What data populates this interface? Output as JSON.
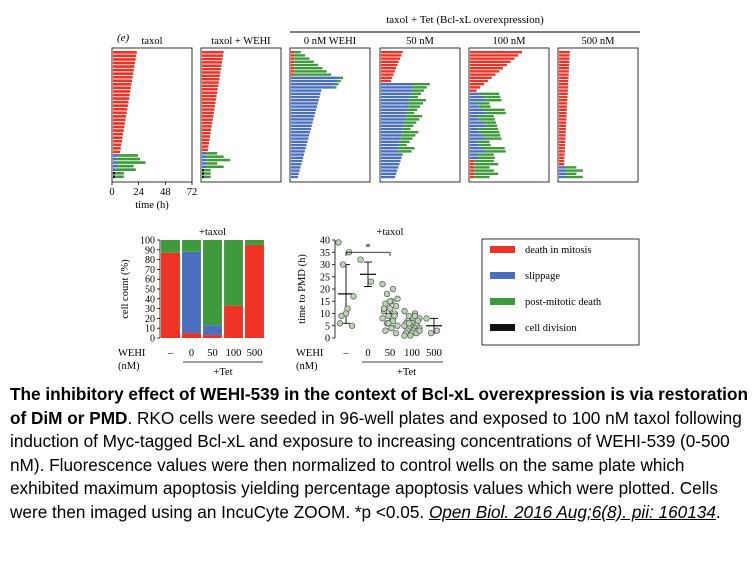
{
  "figure": {
    "panel_label": "(e)",
    "group_label": "taxol + Tet (Bcl-xL overexpression)",
    "tet_label": "+Tet",
    "colors": {
      "death_in_mitosis": "#ee3224",
      "slippage": "#4a6fbf",
      "post_mitotic_death": "#3e9a3a",
      "cell_division": "#111111",
      "dot_fill": "#b9d4b5",
      "dot_stroke": "#555555"
    }
  },
  "fate_charts": {
    "x_ticks": [
      "0",
      "24",
      "48",
      "72"
    ],
    "x_label": "time (h)",
    "panels": [
      {
        "title": "taxol"
      },
      {
        "title": "taxol + WEHI"
      },
      {
        "title": "0 nM WEHI"
      },
      {
        "title": "50 nM"
      },
      {
        "title": "100 nM"
      },
      {
        "title": "500 nM"
      }
    ]
  },
  "chart_data": [
    {
      "type": "bar",
      "title": "+taxol",
      "ylabel": "cell count (%)",
      "ylim": [
        0,
        100
      ],
      "y_ticks": [
        "0",
        "10",
        "20",
        "30",
        "40",
        "50",
        "60",
        "70",
        "80",
        "90",
        "100"
      ],
      "row_label": "WEHI\n(nM)",
      "categories": [
        "–",
        "0",
        "50",
        "100",
        "500"
      ],
      "tet_label": "+Tet",
      "series": [
        {
          "name": "death in mitosis",
          "values": [
            87,
            5,
            3,
            33,
            95
          ]
        },
        {
          "name": "slippage",
          "values": [
            0,
            83,
            10,
            0,
            0
          ]
        },
        {
          "name": "post-mitotic death",
          "values": [
            13,
            12,
            87,
            67,
            5
          ]
        },
        {
          "name": "cell division",
          "values": [
            0,
            0,
            0,
            0,
            0
          ]
        }
      ]
    },
    {
      "type": "scatter",
      "title": "+taxol",
      "ylabel": "time to PMD (h)",
      "ylim": [
        0,
        40
      ],
      "y_ticks": [
        "0",
        "5",
        "10",
        "15",
        "20",
        "25",
        "30",
        "35",
        "40"
      ],
      "row_label": "WEHI\n(nM)",
      "categories": [
        "–",
        "0",
        "50",
        "100",
        "500"
      ],
      "tet_label": "+Tet",
      "annotation": "*",
      "groups": [
        {
          "category": "–",
          "mean": 18,
          "sd": 12,
          "points": [
            39,
            35,
            30,
            17,
            12,
            9,
            5,
            10,
            6
          ]
        },
        {
          "category": "0",
          "mean": 26,
          "sd": 5,
          "points": [
            32,
            23
          ]
        },
        {
          "category": "50",
          "mean": 10,
          "sd": 5,
          "points": [
            22,
            20,
            18,
            16,
            15,
            14,
            13,
            12,
            11,
            10,
            9,
            8,
            7,
            6,
            5,
            4,
            3,
            2,
            15,
            12,
            9,
            6
          ]
        },
        {
          "category": "100",
          "mean": 5,
          "sd": 3,
          "points": [
            11,
            10,
            9,
            8,
            8,
            7,
            7,
            6,
            6,
            5,
            5,
            5,
            4,
            4,
            4,
            3,
            3,
            3,
            2,
            2,
            2,
            1,
            1,
            9,
            6,
            3
          ]
        },
        {
          "category": "500",
          "mean": 5,
          "sd": 3,
          "points": [
            8,
            3,
            2
          ]
        }
      ]
    }
  ],
  "legend": {
    "items": [
      {
        "label": "death in mitosis",
        "color": "#ee3224"
      },
      {
        "label": "slippage",
        "color": "#4a6fbf"
      },
      {
        "label": "post-mitotic death",
        "color": "#3e9a3a"
      },
      {
        "label": "cell division",
        "color": "#111111"
      }
    ]
  },
  "caption": {
    "bold": "The inhibitory effect of WEHI-539 in the context of Bcl-xL overexpression is via restoration of DiM or PMD",
    "text": ". RKO cells were seeded in 96-well plates and exposed to 100 nM taxol following induction of Myc-tagged Bcl-xL and exposure to increasing concentrations of WEHI-539 (0-500 nM). Fluorescence values were then normalized to control wells on the same plate which exhibited maximum apoptosis yielding percentage apoptosis values which were plotted. Cells were then imaged using an IncuCyte ZOOM. *p <0.05.",
    "link": "Open Biol. 2016 Aug;6(8). pii: 160134",
    "end": "."
  }
}
